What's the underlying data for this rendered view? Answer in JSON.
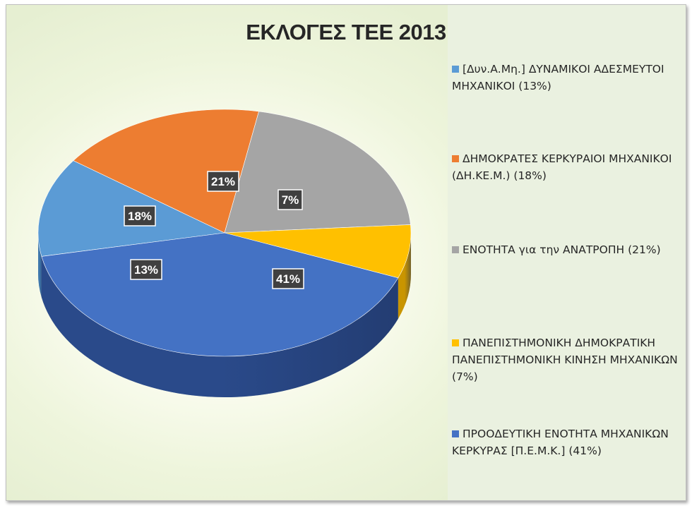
{
  "chart_data": {
    "type": "pie",
    "title": "ΕΚΛΟΓΕΣ ΤΕΕ 2013",
    "legend_position": "right",
    "slices": [
      {
        "name": "[Δυν.Α.Μη.] ΔΥΝΑΜΙΚΟΙ ΑΔΕΣΜΕΥΤΟΙ ΜΗΧΑΝΙΚΟΙ (13%)",
        "value": 13,
        "label": "13%",
        "color": "#5b9bd5",
        "side": "#3f78ad"
      },
      {
        "name": "ΔΗΜΟΚΡΑΤΕΣ ΚΕΡΚΥΡΑΙΟΙ ΜΗΧΑΝΙΚΟΙ (ΔΗ.ΚΕ.Μ.) (18%)",
        "value": 18,
        "label": "18%",
        "color": "#ed7d31",
        "side": "#b85a1c"
      },
      {
        "name": "ΕΝΟΤΗΤΑ για την ΑΝΑΤΡΟΠΗ (21%)",
        "value": 21,
        "label": "21%",
        "color": "#a5a5a5",
        "side": "#7d7d7d"
      },
      {
        "name": "ΠΑΝΕΠΙΣΤΗΜΟΝΙΚΗ ΔΗΜΟΚΡΑΤΙΚΗ ΠΑΝΕΠΙΣΤΗΜΟΝΙΚΗ ΚΙΝΗΣΗ ΜΗΧΑΝΙΚΩΝ (7%)",
        "value": 7,
        "label": "7%",
        "color": "#ffc000",
        "side": "#c99500"
      },
      {
        "name": "ΠΡΟΟΔΕΥΤΙΚΗ ΕΝΟΤΗΤΑ ΜΗΧΑΝΙΚΩΝ ΚΕΡΚΥΡΑΣ [Π.Ε.Μ.Κ.] (41%)",
        "value": 41,
        "label": "41%",
        "color": "#4472c4",
        "side": "#2a4a8a"
      }
    ]
  }
}
